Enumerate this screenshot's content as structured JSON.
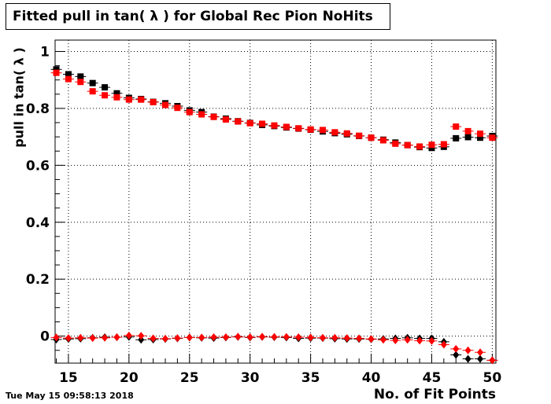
{
  "title": "Fitted pull in tan( λ ) for Global Rec Pion NoHits",
  "date": "Tue May 15 09:58:13 2018",
  "chart_data": {
    "type": "scatter",
    "title": "Fitted pull in tan( λ ) for Global Rec Pion NoHits",
    "xlabel": "No. of Fit Points",
    "ylabel": "pull in tan( λ )",
    "xlim": [
      13.9,
      50.3
    ],
    "ylim": [
      -0.095,
      1.04
    ],
    "x_ticks": [
      15,
      20,
      25,
      30,
      35,
      40,
      45,
      50
    ],
    "y_ticks": [
      0,
      0.2,
      0.4,
      0.6,
      0.8,
      1
    ],
    "grid": true,
    "x": [
      14,
      15,
      16,
      17,
      18,
      19,
      20,
      21,
      22,
      23,
      24,
      25,
      26,
      27,
      28,
      29,
      30,
      31,
      32,
      33,
      34,
      35,
      36,
      37,
      38,
      39,
      40,
      41,
      42,
      43,
      44,
      45,
      46,
      47,
      48,
      49,
      50
    ],
    "series": [
      {
        "color": "#000000",
        "marker": "square",
        "values": [
          0.937,
          0.92,
          0.912,
          0.889,
          0.874,
          0.853,
          0.837,
          0.833,
          0.823,
          0.818,
          0.808,
          0.793,
          0.787,
          0.771,
          0.764,
          0.755,
          0.749,
          0.742,
          0.738,
          0.733,
          0.729,
          0.725,
          0.719,
          0.713,
          0.709,
          0.703,
          0.697,
          0.69,
          0.68,
          0.671,
          0.664,
          0.661,
          0.665,
          0.695,
          0.699,
          0.697,
          0.703
        ]
      },
      {
        "color": "#ff0000",
        "marker": "square",
        "values": [
          0.925,
          0.903,
          0.893,
          0.86,
          0.846,
          0.839,
          0.831,
          0.831,
          0.822,
          0.812,
          0.802,
          0.787,
          0.779,
          0.77,
          0.761,
          0.754,
          0.748,
          0.746,
          0.74,
          0.735,
          0.73,
          0.726,
          0.724,
          0.716,
          0.712,
          0.704,
          0.697,
          0.688,
          0.676,
          0.671,
          0.666,
          0.672,
          0.674,
          0.736,
          0.72,
          0.711,
          0.697
        ]
      },
      {
        "color": "#000000",
        "marker": "diamond",
        "values": [
          -0.012,
          -0.01,
          -0.009,
          -0.006,
          -0.004,
          -0.004,
          -0.003,
          -0.013,
          -0.012,
          -0.01,
          -0.008,
          -0.005,
          -0.006,
          -0.007,
          -0.005,
          -0.003,
          -0.005,
          -0.003,
          -0.004,
          -0.005,
          -0.008,
          -0.007,
          -0.007,
          -0.009,
          -0.01,
          -0.01,
          -0.011,
          -0.01,
          -0.008,
          -0.006,
          -0.008,
          -0.008,
          -0.02,
          -0.066,
          -0.08,
          -0.08,
          -0.085
        ]
      },
      {
        "color": "#ff0000",
        "marker": "diamond",
        "values": [
          -0.005,
          -0.007,
          -0.006,
          -0.007,
          -0.006,
          -0.004,
          0.002,
          0.001,
          -0.008,
          -0.009,
          -0.007,
          -0.005,
          -0.005,
          -0.004,
          -0.004,
          -0.002,
          -0.004,
          -0.002,
          -0.003,
          -0.003,
          -0.004,
          -0.005,
          -0.006,
          -0.006,
          -0.007,
          -0.008,
          -0.01,
          -0.013,
          -0.015,
          -0.013,
          -0.016,
          -0.017,
          -0.03,
          -0.045,
          -0.05,
          -0.057,
          -0.085
        ]
      }
    ]
  }
}
